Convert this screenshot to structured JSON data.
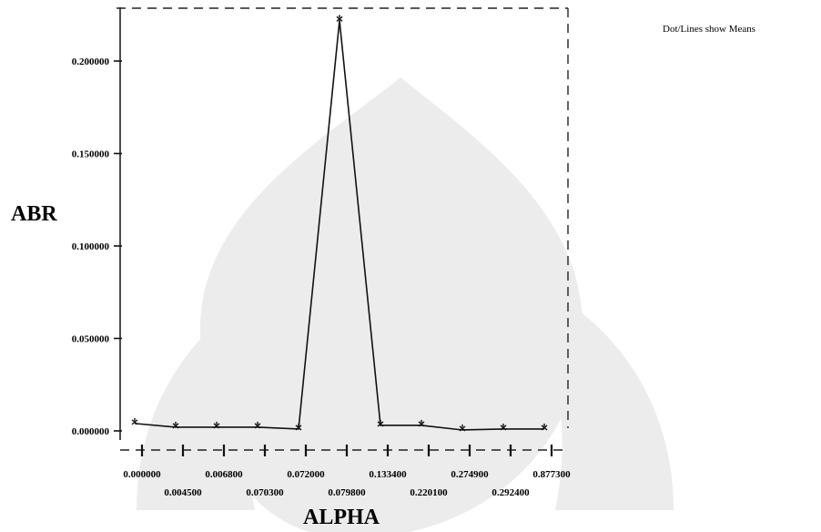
{
  "chart_data": {
    "type": "line",
    "title": "",
    "note": "Dot/Lines show Means",
    "xlabel": "ALPHA",
    "ylabel": "ABR",
    "categories": [
      "0.000000",
      "0.004500",
      "0.006800",
      "0.070300",
      "0.072000",
      "0.079800",
      "0.133400",
      "0.220100",
      "0.274900",
      "0.292400",
      "0.877300"
    ],
    "yticks": [
      "0.000000",
      "0.050000",
      "0.100000",
      "0.150000",
      "0.200000"
    ],
    "ylim": [
      -0.004,
      0.232
    ],
    "grid": false,
    "series": [
      {
        "values": [
          0.004,
          0.002,
          0.002,
          0.002,
          0.001,
          0.222,
          0.003,
          0.003,
          0.0005,
          0.001,
          0.001
        ]
      }
    ]
  }
}
